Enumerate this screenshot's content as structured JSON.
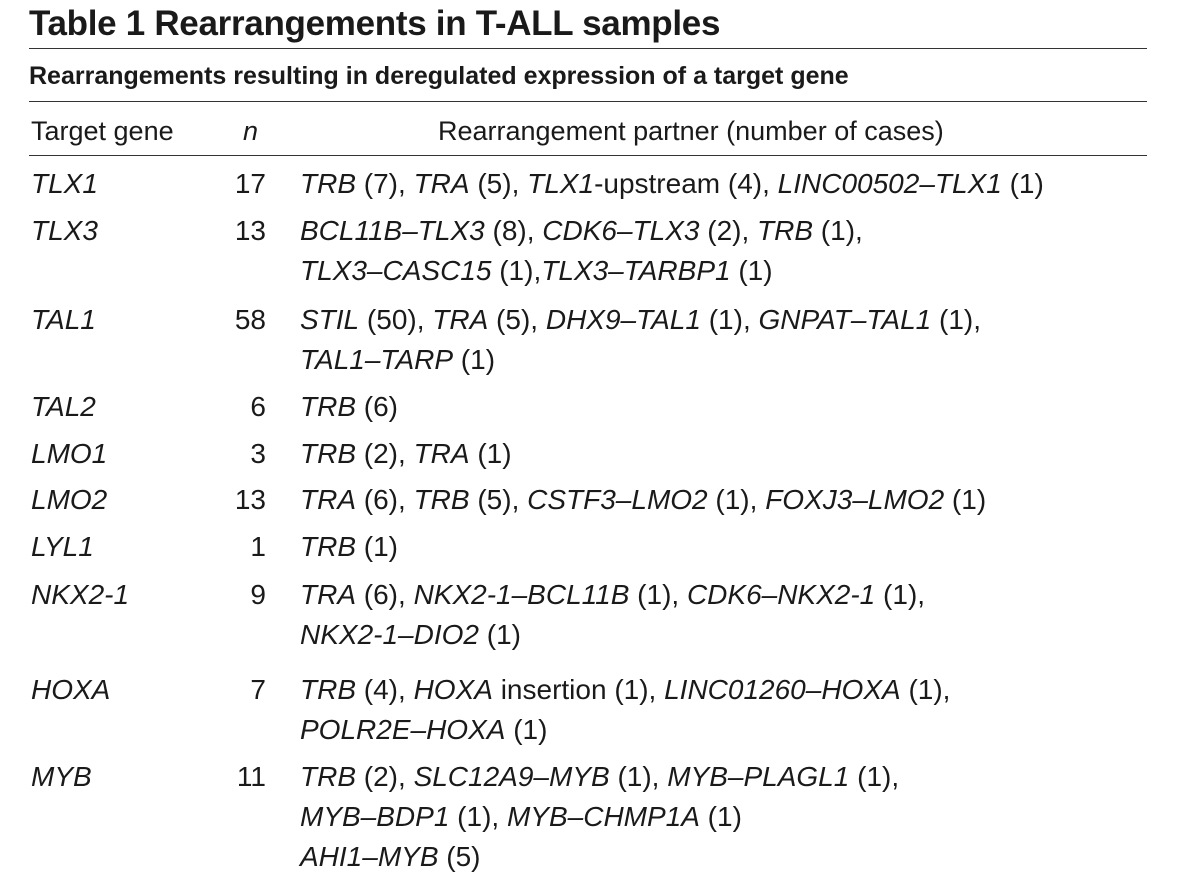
{
  "title": "Table 1  Rearrangements in T-ALL samples",
  "subtitle": "Rearrangements resulting in deregulated expression of a target gene",
  "headers": {
    "gene": "Target gene",
    "n": "n",
    "partner": "Rearrangement partner (number of cases)"
  },
  "rows": [
    {
      "gene": "TLX1",
      "n": "17",
      "lines": [
        [
          [
            "TRB",
            true
          ],
          [
            " (7), ",
            false
          ],
          [
            "TRA",
            true
          ],
          [
            " (5), ",
            false
          ],
          [
            "TLX1",
            true
          ],
          [
            "-upstream (4), ",
            false
          ],
          [
            "LINC00502–TLX1",
            true
          ],
          [
            " (1)",
            false
          ]
        ]
      ]
    },
    {
      "gene": "TLX3",
      "n": "13",
      "lines": [
        [
          [
            "BCL11B–TLX3",
            true
          ],
          [
            " (8), ",
            false
          ],
          [
            "CDK6–TLX3",
            true
          ],
          [
            " (2), ",
            false
          ],
          [
            "TRB",
            true
          ],
          [
            " (1),",
            false
          ]
        ],
        [
          [
            "TLX3–CASC15",
            true
          ],
          [
            " (1),",
            false
          ],
          [
            "TLX3–TARBP1",
            true
          ],
          [
            " (1)",
            false
          ]
        ]
      ]
    },
    {
      "gene": "TAL1",
      "n": "58",
      "lines": [
        [
          [
            "STIL",
            true
          ],
          [
            " (50), ",
            false
          ],
          [
            "TRA",
            true
          ],
          [
            " (5), ",
            false
          ],
          [
            "DHX9–TAL1",
            true
          ],
          [
            " (1), ",
            false
          ],
          [
            "GNPAT–TAL1",
            true
          ],
          [
            " (1),",
            false
          ]
        ],
        [
          [
            "TAL1–TARP",
            true
          ],
          [
            "  (1)",
            false
          ]
        ]
      ]
    },
    {
      "gene": "TAL2",
      "n": "6",
      "lines": [
        [
          [
            "TRB",
            true
          ],
          [
            " (6)",
            false
          ]
        ]
      ]
    },
    {
      "gene": "LMO1",
      "n": "3",
      "lines": [
        [
          [
            "TRB",
            true
          ],
          [
            " (2), ",
            false
          ],
          [
            "TRA",
            true
          ],
          [
            " (1)",
            false
          ]
        ]
      ]
    },
    {
      "gene": "LMO2",
      "n": "13",
      "lines": [
        [
          [
            "TRA",
            true
          ],
          [
            " (6), ",
            false
          ],
          [
            "TRB",
            true
          ],
          [
            " (5), ",
            false
          ],
          [
            "CSTF3–LMO2",
            true
          ],
          [
            " (1), ",
            false
          ],
          [
            "FOXJ3–LMO2",
            true
          ],
          [
            " (1)",
            false
          ]
        ]
      ]
    },
    {
      "gene": "LYL1",
      "n": "1",
      "lines": [
        [
          [
            "TRB",
            true
          ],
          [
            " (1)",
            false
          ]
        ]
      ]
    },
    {
      "gene": "NKX2-1",
      "n": "9",
      "lines": [
        [
          [
            "TRA",
            true
          ],
          [
            " (6), ",
            false
          ],
          [
            "NKX2-1–BCL11B",
            true
          ],
          [
            " (1), ",
            false
          ],
          [
            "CDK6–NKX2-1",
            true
          ],
          [
            " (1),",
            false
          ]
        ],
        [
          [
            "NKX2-1–DIO2",
            true
          ],
          [
            " (1)",
            false
          ]
        ]
      ]
    },
    {
      "gene": "HOXA",
      "n": "7",
      "lines": [
        [
          [
            "TRB",
            true
          ],
          [
            " (4), ",
            false
          ],
          [
            "HOXA",
            true
          ],
          [
            " insertion (1), ",
            false
          ],
          [
            "LINC01260–HOXA",
            true
          ],
          [
            " (1),",
            false
          ]
        ],
        [
          [
            "POLR2E–HOXA",
            true
          ],
          [
            " (1)",
            false
          ]
        ]
      ]
    },
    {
      "gene": "MYB",
      "n": "11",
      "lines": [
        [
          [
            "TRB",
            true
          ],
          [
            " (2), ",
            false
          ],
          [
            "SLC12A9–MYB",
            true
          ],
          [
            " (1), ",
            false
          ],
          [
            "MYB–PLAGL1",
            true
          ],
          [
            " (1),",
            false
          ]
        ],
        [
          [
            "MYB–BDP1",
            true
          ],
          [
            " (1), ",
            false
          ],
          [
            "MYB–CHMP1A",
            true
          ],
          [
            " (1)",
            false
          ]
        ],
        [
          [
            "AHI1–MYB",
            true
          ],
          [
            " (5)",
            false
          ]
        ]
      ]
    }
  ]
}
